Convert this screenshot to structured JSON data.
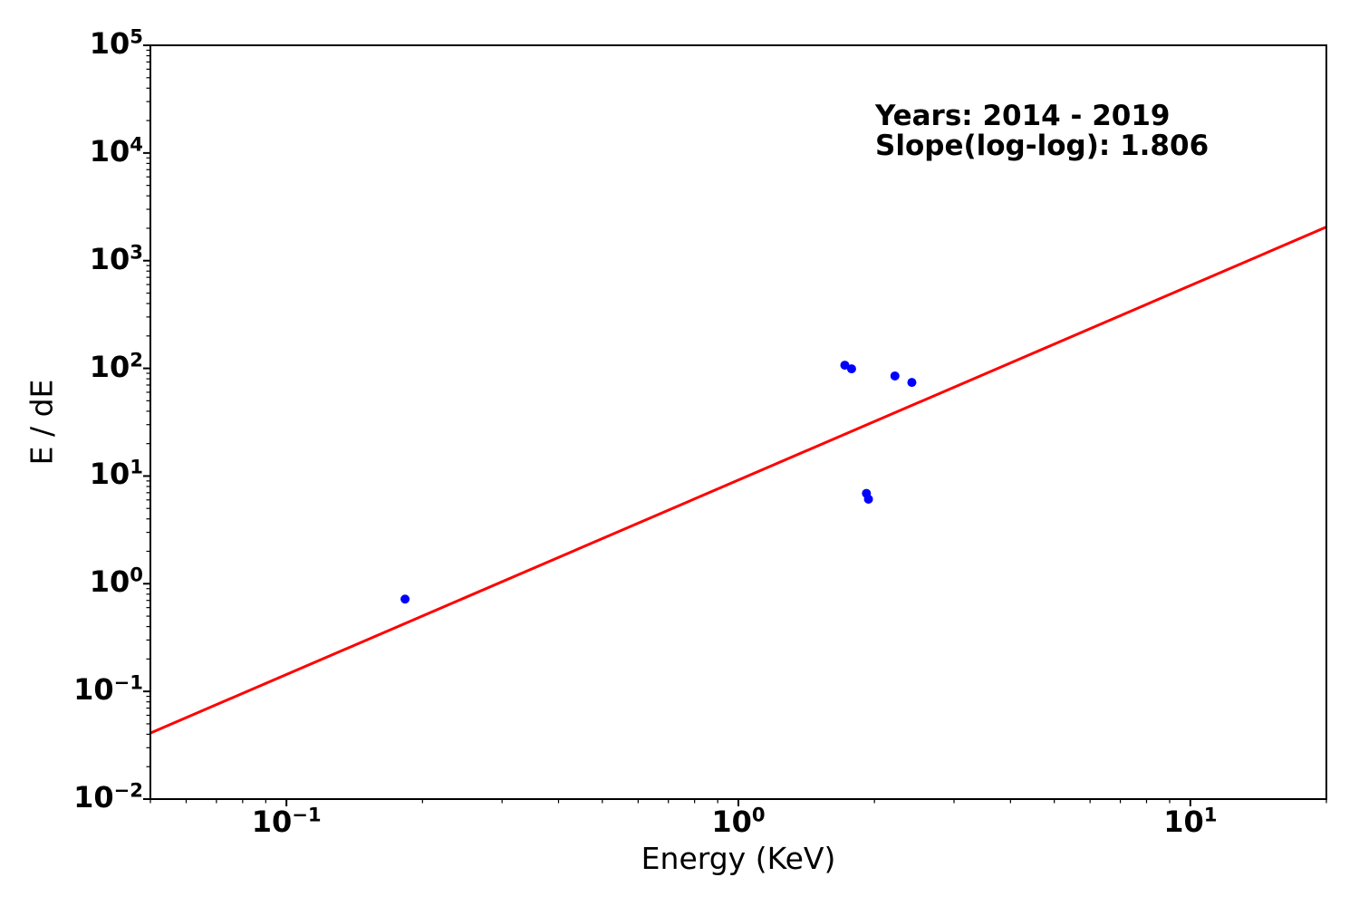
{
  "figure": {
    "background_color": "#ffffff",
    "text_color": "#000000"
  },
  "chart_data": {
    "type": "scatter",
    "title": "",
    "xlabel": "Energy (KeV)",
    "ylabel": "E / dE",
    "x_scale": "log",
    "y_scale": "log",
    "xlim": [
      0.05,
      20
    ],
    "ylim": [
      0.01,
      100000
    ],
    "grid": false,
    "legend": false,
    "tick_label_base": "10",
    "x_tick_exponents": [
      -1,
      0,
      1
    ],
    "y_tick_exponents": [
      -2,
      -1,
      0,
      1,
      2,
      3,
      4,
      5
    ],
    "point_color": "#0000ff",
    "points": [
      {
        "x": 0.183,
        "y": 0.72
      },
      {
        "x": 1.72,
        "y": 107
      },
      {
        "x": 1.78,
        "y": 99
      },
      {
        "x": 1.92,
        "y": 6.9
      },
      {
        "x": 1.94,
        "y": 6.1
      },
      {
        "x": 2.22,
        "y": 85
      },
      {
        "x": 2.42,
        "y": 74
      }
    ],
    "fit_line": {
      "color": "#ff0000",
      "slope_loglog": 1.806,
      "intercept_log10_at_1kev": 0.963,
      "x_start": 0.05,
      "x_end": 20
    },
    "annotation": {
      "line1": "Years: 2014 - 2019",
      "line2": "Slope(log-log): 1.806"
    }
  }
}
